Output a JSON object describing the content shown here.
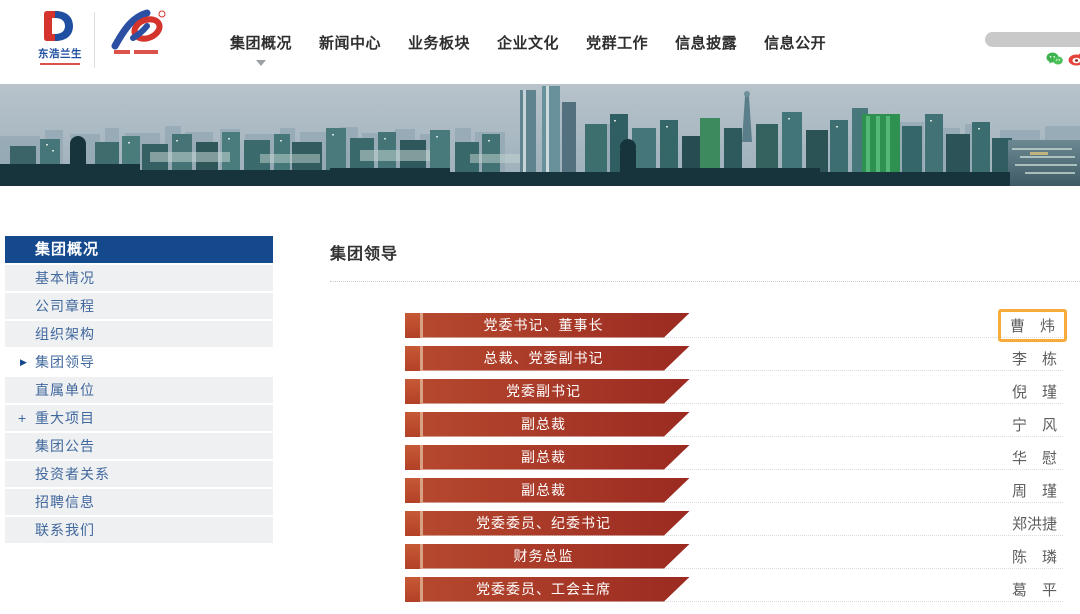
{
  "header": {
    "brand": "东浩兰生",
    "nav": [
      {
        "label": "集团概况",
        "active": true
      },
      {
        "label": "新闻中心",
        "active": false
      },
      {
        "label": "业务板块",
        "active": false
      },
      {
        "label": "企业文化",
        "active": false
      },
      {
        "label": "党群工作",
        "active": false
      },
      {
        "label": "信息披露",
        "active": false
      },
      {
        "label": "信息公开",
        "active": false
      }
    ],
    "search": {
      "value": "",
      "placeholder": ""
    }
  },
  "sidebar": {
    "title": "集团概况",
    "items": [
      {
        "label": "基本情况",
        "active": false,
        "expandable": false
      },
      {
        "label": "公司章程",
        "active": false,
        "expandable": false
      },
      {
        "label": "组织架构",
        "active": false,
        "expandable": false
      },
      {
        "label": "集团领导",
        "active": true,
        "expandable": false
      },
      {
        "label": "直属单位",
        "active": false,
        "expandable": false
      },
      {
        "label": "重大项目",
        "active": false,
        "expandable": true
      },
      {
        "label": "集团公告",
        "active": false,
        "expandable": false
      },
      {
        "label": "投资者关系",
        "active": false,
        "expandable": false
      },
      {
        "label": "招聘信息",
        "active": false,
        "expandable": false
      },
      {
        "label": "联系我们",
        "active": false,
        "expandable": false
      }
    ]
  },
  "main": {
    "title": "集团领导",
    "leaders": [
      {
        "title": "党委书记、董事长",
        "name": "曹　炜",
        "highlighted": true
      },
      {
        "title": "总裁、党委副书记",
        "name": "李　栋",
        "highlighted": false
      },
      {
        "title": "党委副书记",
        "name": "倪　瑾",
        "highlighted": false
      },
      {
        "title": "副总裁",
        "name": "宁　风",
        "highlighted": false
      },
      {
        "title": "副总裁",
        "name": "华　慰",
        "highlighted": false
      },
      {
        "title": "副总裁",
        "name": "周　瑾",
        "highlighted": false
      },
      {
        "title": "党委委员、纪委书记",
        "name": "郑洪捷",
        "highlighted": false
      },
      {
        "title": "财务总监",
        "name": "陈　璘",
        "highlighted": false
      },
      {
        "title": "党委委员、工会主席",
        "name": "葛　平",
        "highlighted": false
      }
    ]
  },
  "colors": {
    "sidebar_header_bg": "#14498d",
    "sidebar_item_bg": "#eef0f1",
    "sidebar_text": "#41689e",
    "ribbon_gradient_start": "#b5482e",
    "ribbon_gradient_end": "#9b2a21",
    "ribbon_left_block": "#c0502e",
    "highlight_box": "#f6ab3a",
    "name_text": "#5e5e5e",
    "brand_blue": "#1f4fa0",
    "brand_red": "#d5342c"
  }
}
